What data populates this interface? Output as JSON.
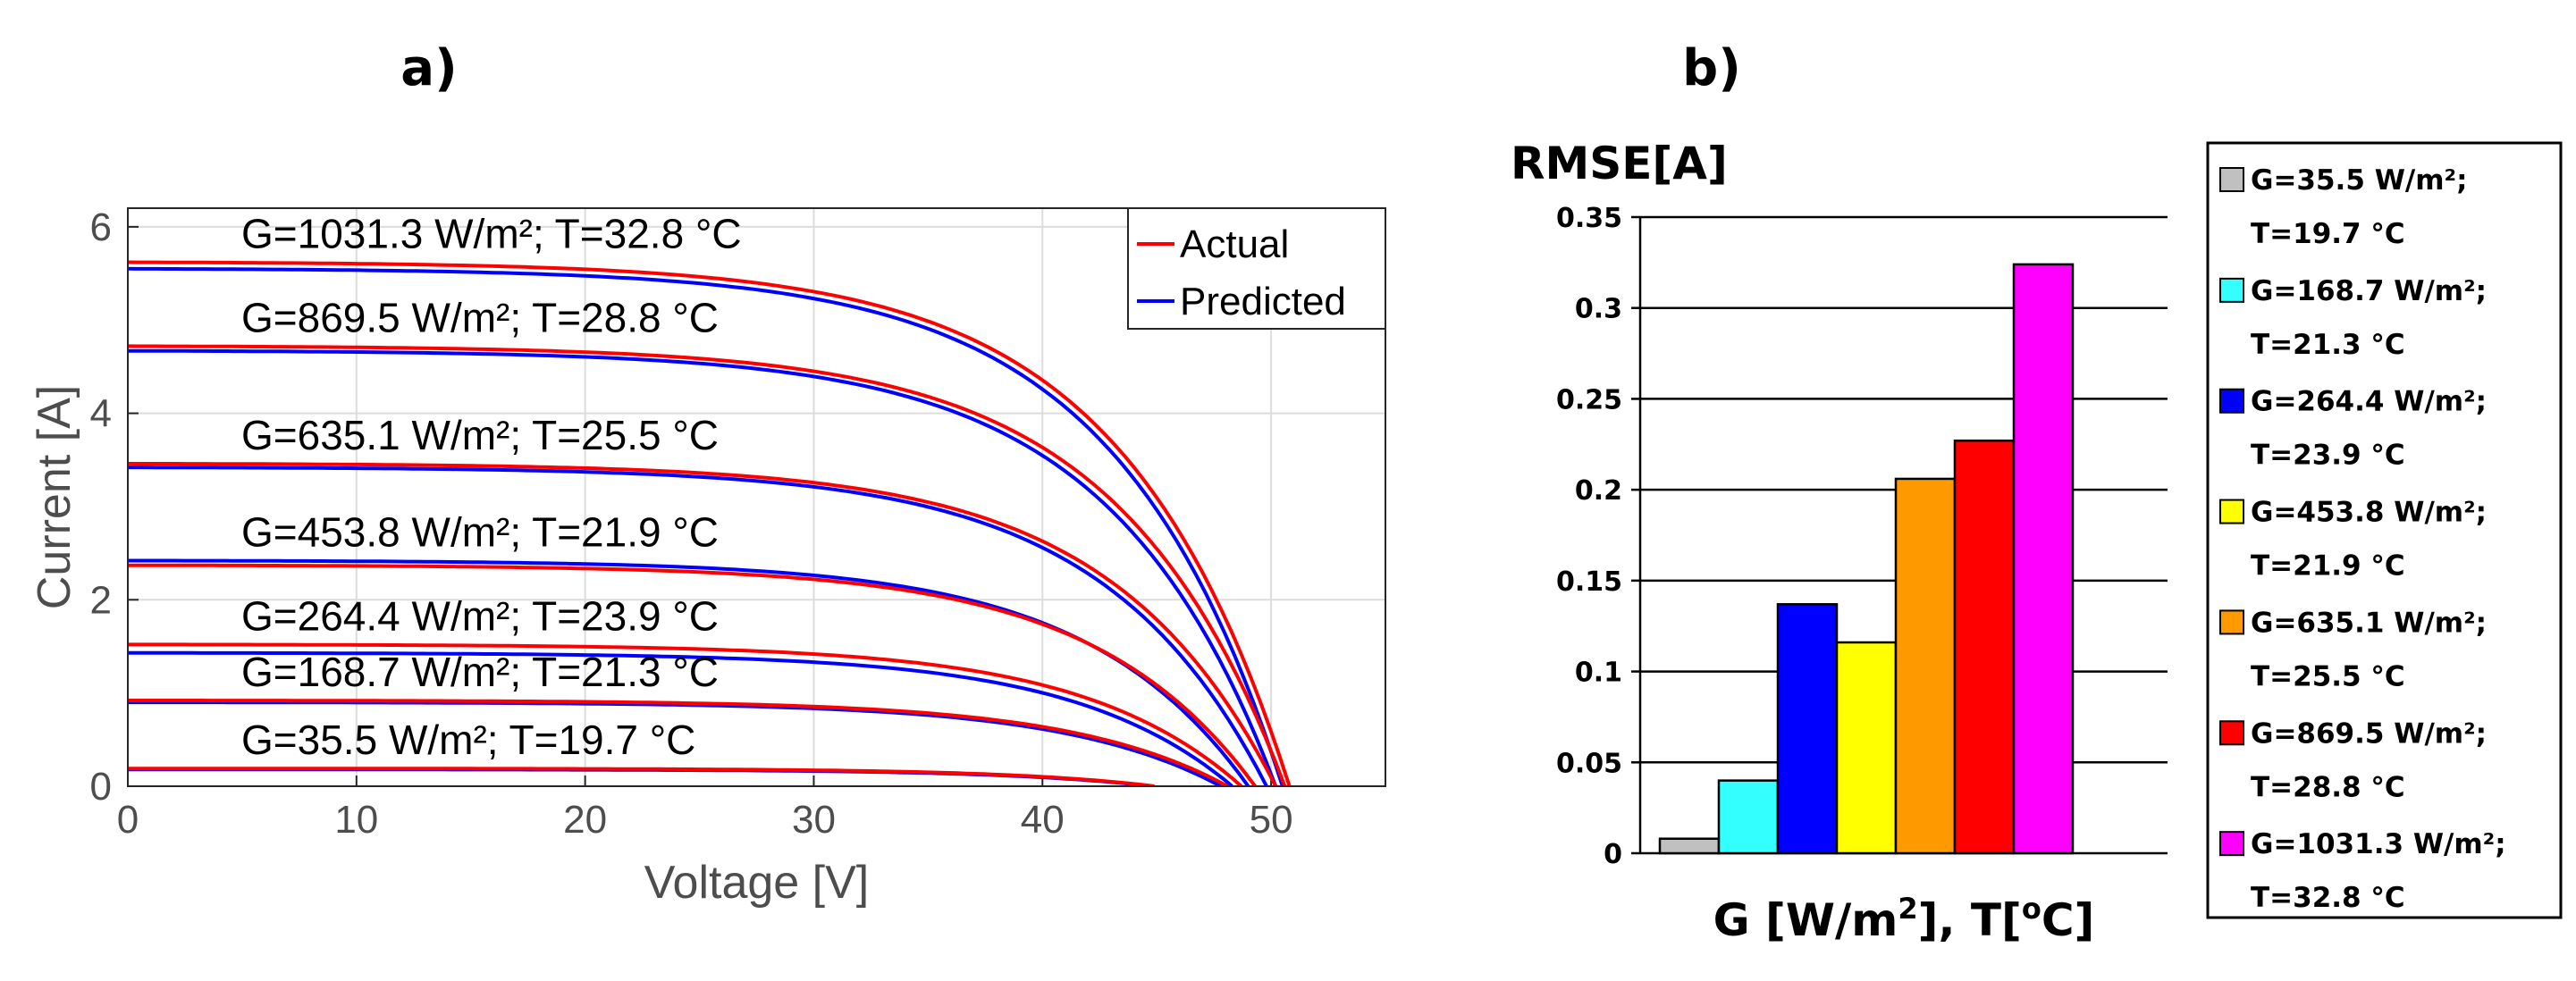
{
  "panel_a_label": "a)",
  "panel_b_label": "b)",
  "chart_data": [
    {
      "type": "line",
      "xlabel": "Voltage [V]",
      "ylabel": "Current [A]",
      "xlim": [
        0,
        55
      ],
      "ylim": [
        0,
        6.2
      ],
      "xticks": [
        0,
        10,
        20,
        30,
        40,
        50
      ],
      "yticks": [
        0,
        2,
        4,
        6
      ],
      "grid": true,
      "legend_position": "top-right",
      "legend": [
        {
          "label": "Actual",
          "color": "#ff0000"
        },
        {
          "label": "Predicted",
          "color": "#0000ff"
        }
      ],
      "curves": [
        {
          "label": "G=1031.3 W/m²; T=32.8 °C",
          "actual": {
            "isc": 5.62,
            "voc": 50.8
          },
          "predicted": {
            "isc": 5.55,
            "voc": 50.5
          }
        },
        {
          "label": "G=869.5 W/m²; T=28.8 °C",
          "actual": {
            "isc": 4.72,
            "voc": 50.6
          },
          "predicted": {
            "isc": 4.67,
            "voc": 50.2
          }
        },
        {
          "label": "G=635.1 W/m²; T=25.5 °C",
          "actual": {
            "isc": 3.46,
            "voc": 50.2
          },
          "predicted": {
            "isc": 3.42,
            "voc": 49.8
          }
        },
        {
          "label": "G=453.8 W/m²; T=21.9 °C",
          "actual": {
            "isc": 2.37,
            "voc": 49.3
          },
          "predicted": {
            "isc": 2.42,
            "voc": 49.0
          }
        },
        {
          "label": "G=264.4 W/m²; T=23.9 °C",
          "actual": {
            "isc": 1.52,
            "voc": 48.7
          },
          "predicted": {
            "isc": 1.43,
            "voc": 48.3
          }
        },
        {
          "label": "G=168.7 W/m²; T=21.3 °C",
          "actual": {
            "isc": 0.92,
            "voc": 48.1
          },
          "predicted": {
            "isc": 0.9,
            "voc": 47.8
          }
        },
        {
          "label": "G=35.5 W/m²; T=19.7 °C",
          "actual": {
            "isc": 0.19,
            "voc": 44.9
          },
          "predicted": {
            "isc": 0.18,
            "voc": 44.8
          }
        }
      ]
    },
    {
      "type": "bar",
      "title": "RMSE[A]",
      "xlabel": "G [W/m2], T[oC]",
      "xlabel_parts": {
        "base1": "G [W/m",
        "sup1": "2",
        "mid": "], T[",
        "sup2": "o",
        "end": "C]"
      },
      "ylim": [
        0,
        0.35
      ],
      "yticks": [
        "0",
        "0.05",
        "0.1",
        "0.15",
        "0.2",
        "0.25",
        "0.3",
        "0.35"
      ],
      "grid": true,
      "legend_position": "right",
      "bars": [
        {
          "line1": "G=35.5 W/m²;",
          "line2": "T=19.7 °C",
          "value": 0.008,
          "color": "#c0c0c0"
        },
        {
          "line1": "G=168.7 W/m²;",
          "line2": "T=21.3 °C",
          "value": 0.04,
          "color": "#33ffff"
        },
        {
          "line1": "G=264.4 W/m²;",
          "line2": "T=23.9 °C",
          "value": 0.137,
          "color": "#0000ff"
        },
        {
          "line1": "G=453.8 W/m²;",
          "line2": "T=21.9 °C",
          "value": 0.116,
          "color": "#ffff00"
        },
        {
          "line1": "G=635.1 W/m²;",
          "line2": "T=25.5 °C",
          "value": 0.206,
          "color": "#ff9900"
        },
        {
          "line1": "G=869.5 W/m²;",
          "line2": "T=28.8 °C",
          "value": 0.227,
          "color": "#ff0000"
        },
        {
          "line1": "G=1031.3 W/m²;",
          "line2": "T=32.8 °C",
          "value": 0.324,
          "color": "#ff00ff"
        }
      ]
    }
  ]
}
